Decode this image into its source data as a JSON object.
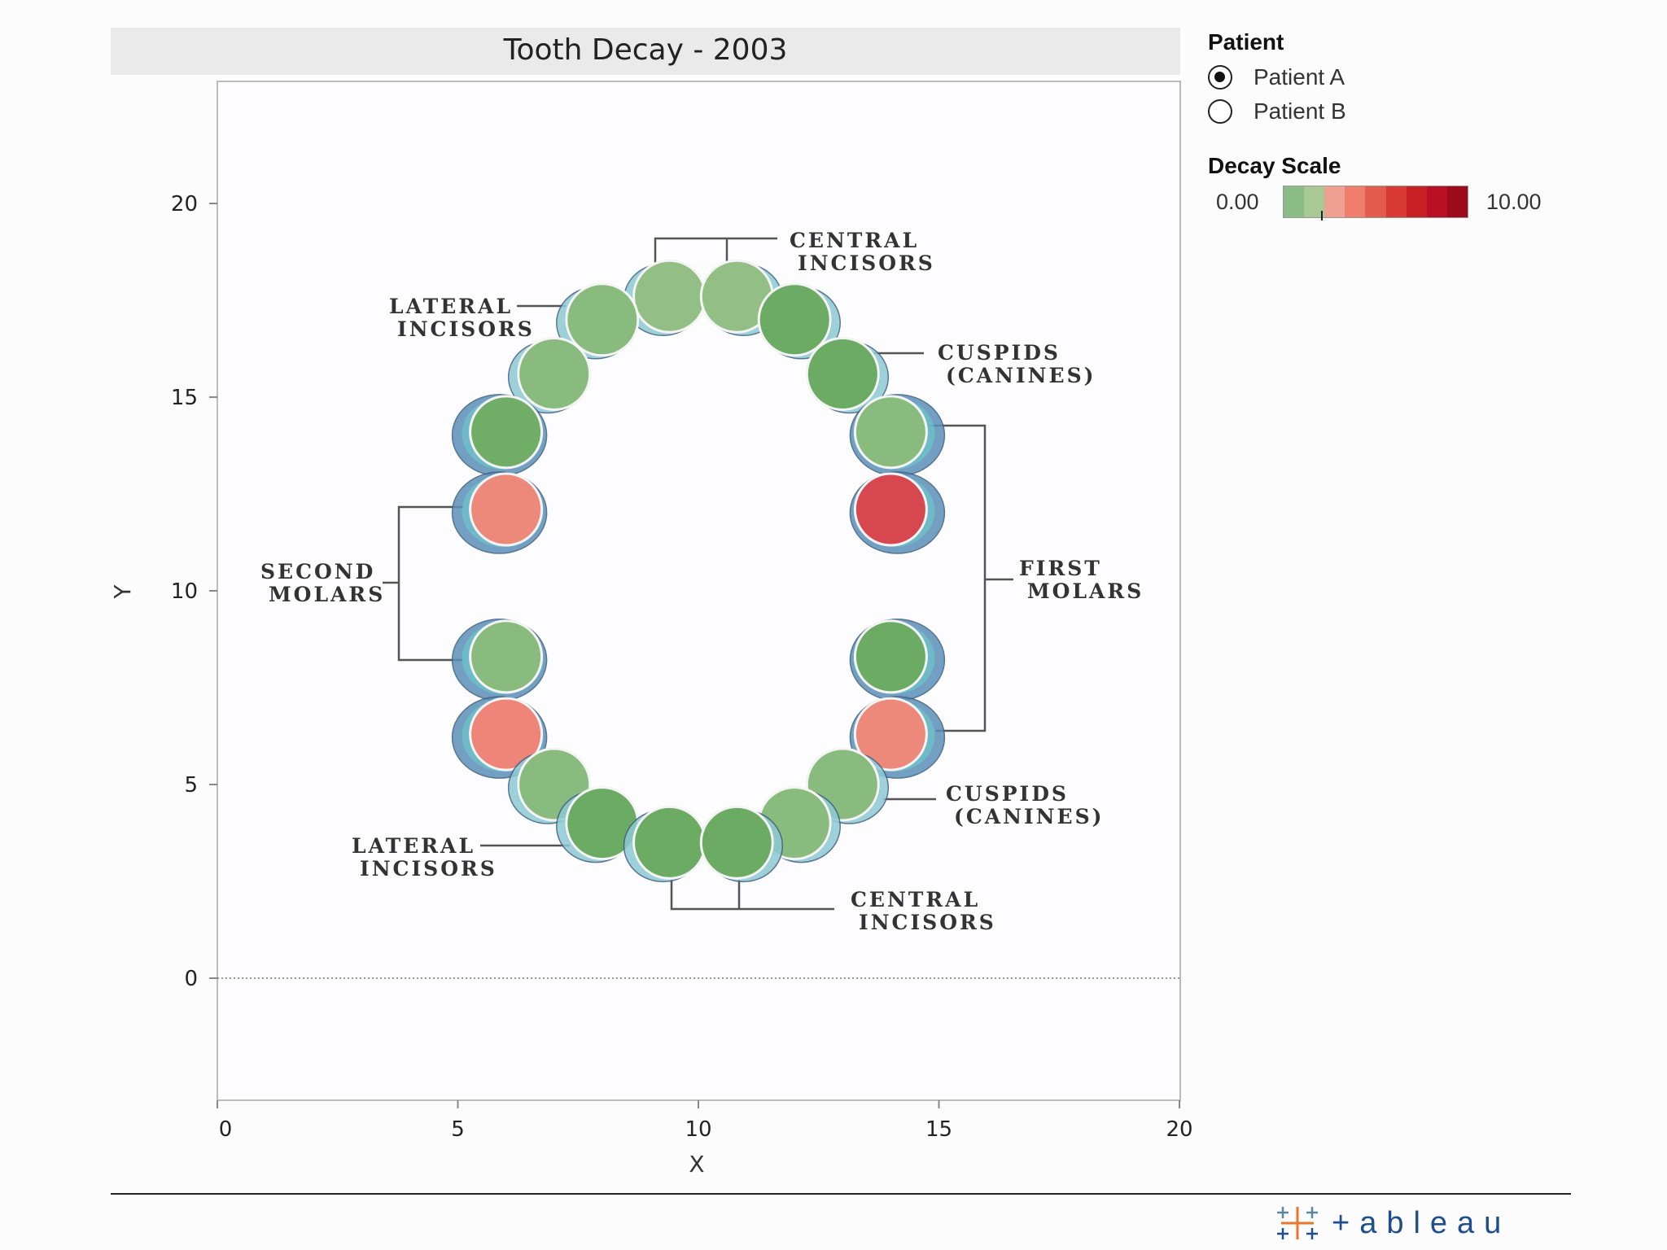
{
  "chart_data": {
    "type": "scatter",
    "title": "Tooth Decay - 2003",
    "xlabel": "X",
    "ylabel": "Y",
    "xlim": [
      0,
      20
    ],
    "ylim": [
      -3,
      23
    ],
    "x_ticks": [
      "0",
      "5",
      "10",
      "15",
      "20"
    ],
    "y_ticks": [
      "0",
      "5",
      "10",
      "15",
      "20"
    ],
    "color_scale": [
      "#8cbc85",
      "#f0877a",
      "#c0102a"
    ],
    "points": [
      {
        "x": 9.4,
        "y": 17.6,
        "decay": 1.2
      },
      {
        "x": 10.8,
        "y": 17.6,
        "decay": 1.2
      },
      {
        "x": 8.0,
        "y": 17.0,
        "decay": 1.0
      },
      {
        "x": 12.0,
        "y": 17.0,
        "decay": 0.3
      },
      {
        "x": 7.0,
        "y": 15.6,
        "decay": 1.0
      },
      {
        "x": 13.0,
        "y": 15.6,
        "decay": 0.3
      },
      {
        "x": 6.0,
        "y": 14.1,
        "decay": 0.4
      },
      {
        "x": 14.0,
        "y": 14.1,
        "decay": 1.0
      },
      {
        "x": 6.0,
        "y": 12.1,
        "decay": 3.4
      },
      {
        "x": 14.0,
        "y": 12.1,
        "decay": 7.0
      },
      {
        "x": 6.0,
        "y": 8.3,
        "decay": 1.0
      },
      {
        "x": 14.0,
        "y": 8.3,
        "decay": 0.3
      },
      {
        "x": 6.0,
        "y": 6.3,
        "decay": 3.6
      },
      {
        "x": 14.0,
        "y": 6.3,
        "decay": 3.4
      },
      {
        "x": 7.0,
        "y": 5.0,
        "decay": 1.0
      },
      {
        "x": 13.0,
        "y": 5.0,
        "decay": 1.0
      },
      {
        "x": 8.0,
        "y": 4.0,
        "decay": 0.3
      },
      {
        "x": 12.0,
        "y": 4.0,
        "decay": 1.0
      },
      {
        "x": 9.4,
        "y": 3.5,
        "decay": 0.3
      },
      {
        "x": 10.8,
        "y": 3.5,
        "decay": 0.3
      }
    ],
    "annotations": {
      "central_incisors_top": [
        "CENTRAL",
        "INCISORS"
      ],
      "lateral_incisors_top": [
        "LATERAL",
        "INCISORS"
      ],
      "cuspids_top": [
        "CUSPIDS",
        "(CANINES)"
      ],
      "first_molars": [
        "FIRST",
        "MOLARS"
      ],
      "second_molars": [
        "SECOND",
        "MOLARS"
      ],
      "cuspids_bottom": [
        "CUSPIDS",
        "(CANINES)"
      ],
      "lateral_incisors_bottom": [
        "LATERAL",
        "INCISORS"
      ],
      "central_incisors_bottom": [
        "CENTRAL",
        "INCISORS"
      ]
    }
  },
  "legend": {
    "patient_title": "Patient",
    "patients": [
      "Patient A",
      "Patient B"
    ],
    "selected_patient": "Patient A",
    "decay_title": "Decay Scale",
    "scale_min": "0.00",
    "scale_max": "10.00",
    "scale_colors": [
      "#8cbc85",
      "#a9c994",
      "#f0a090",
      "#ef7d6c",
      "#e35b4c",
      "#d63a32",
      "#c92026",
      "#b80f22",
      "#9c0a1c"
    ]
  },
  "footer": {
    "logo_text": "+ableau"
  }
}
